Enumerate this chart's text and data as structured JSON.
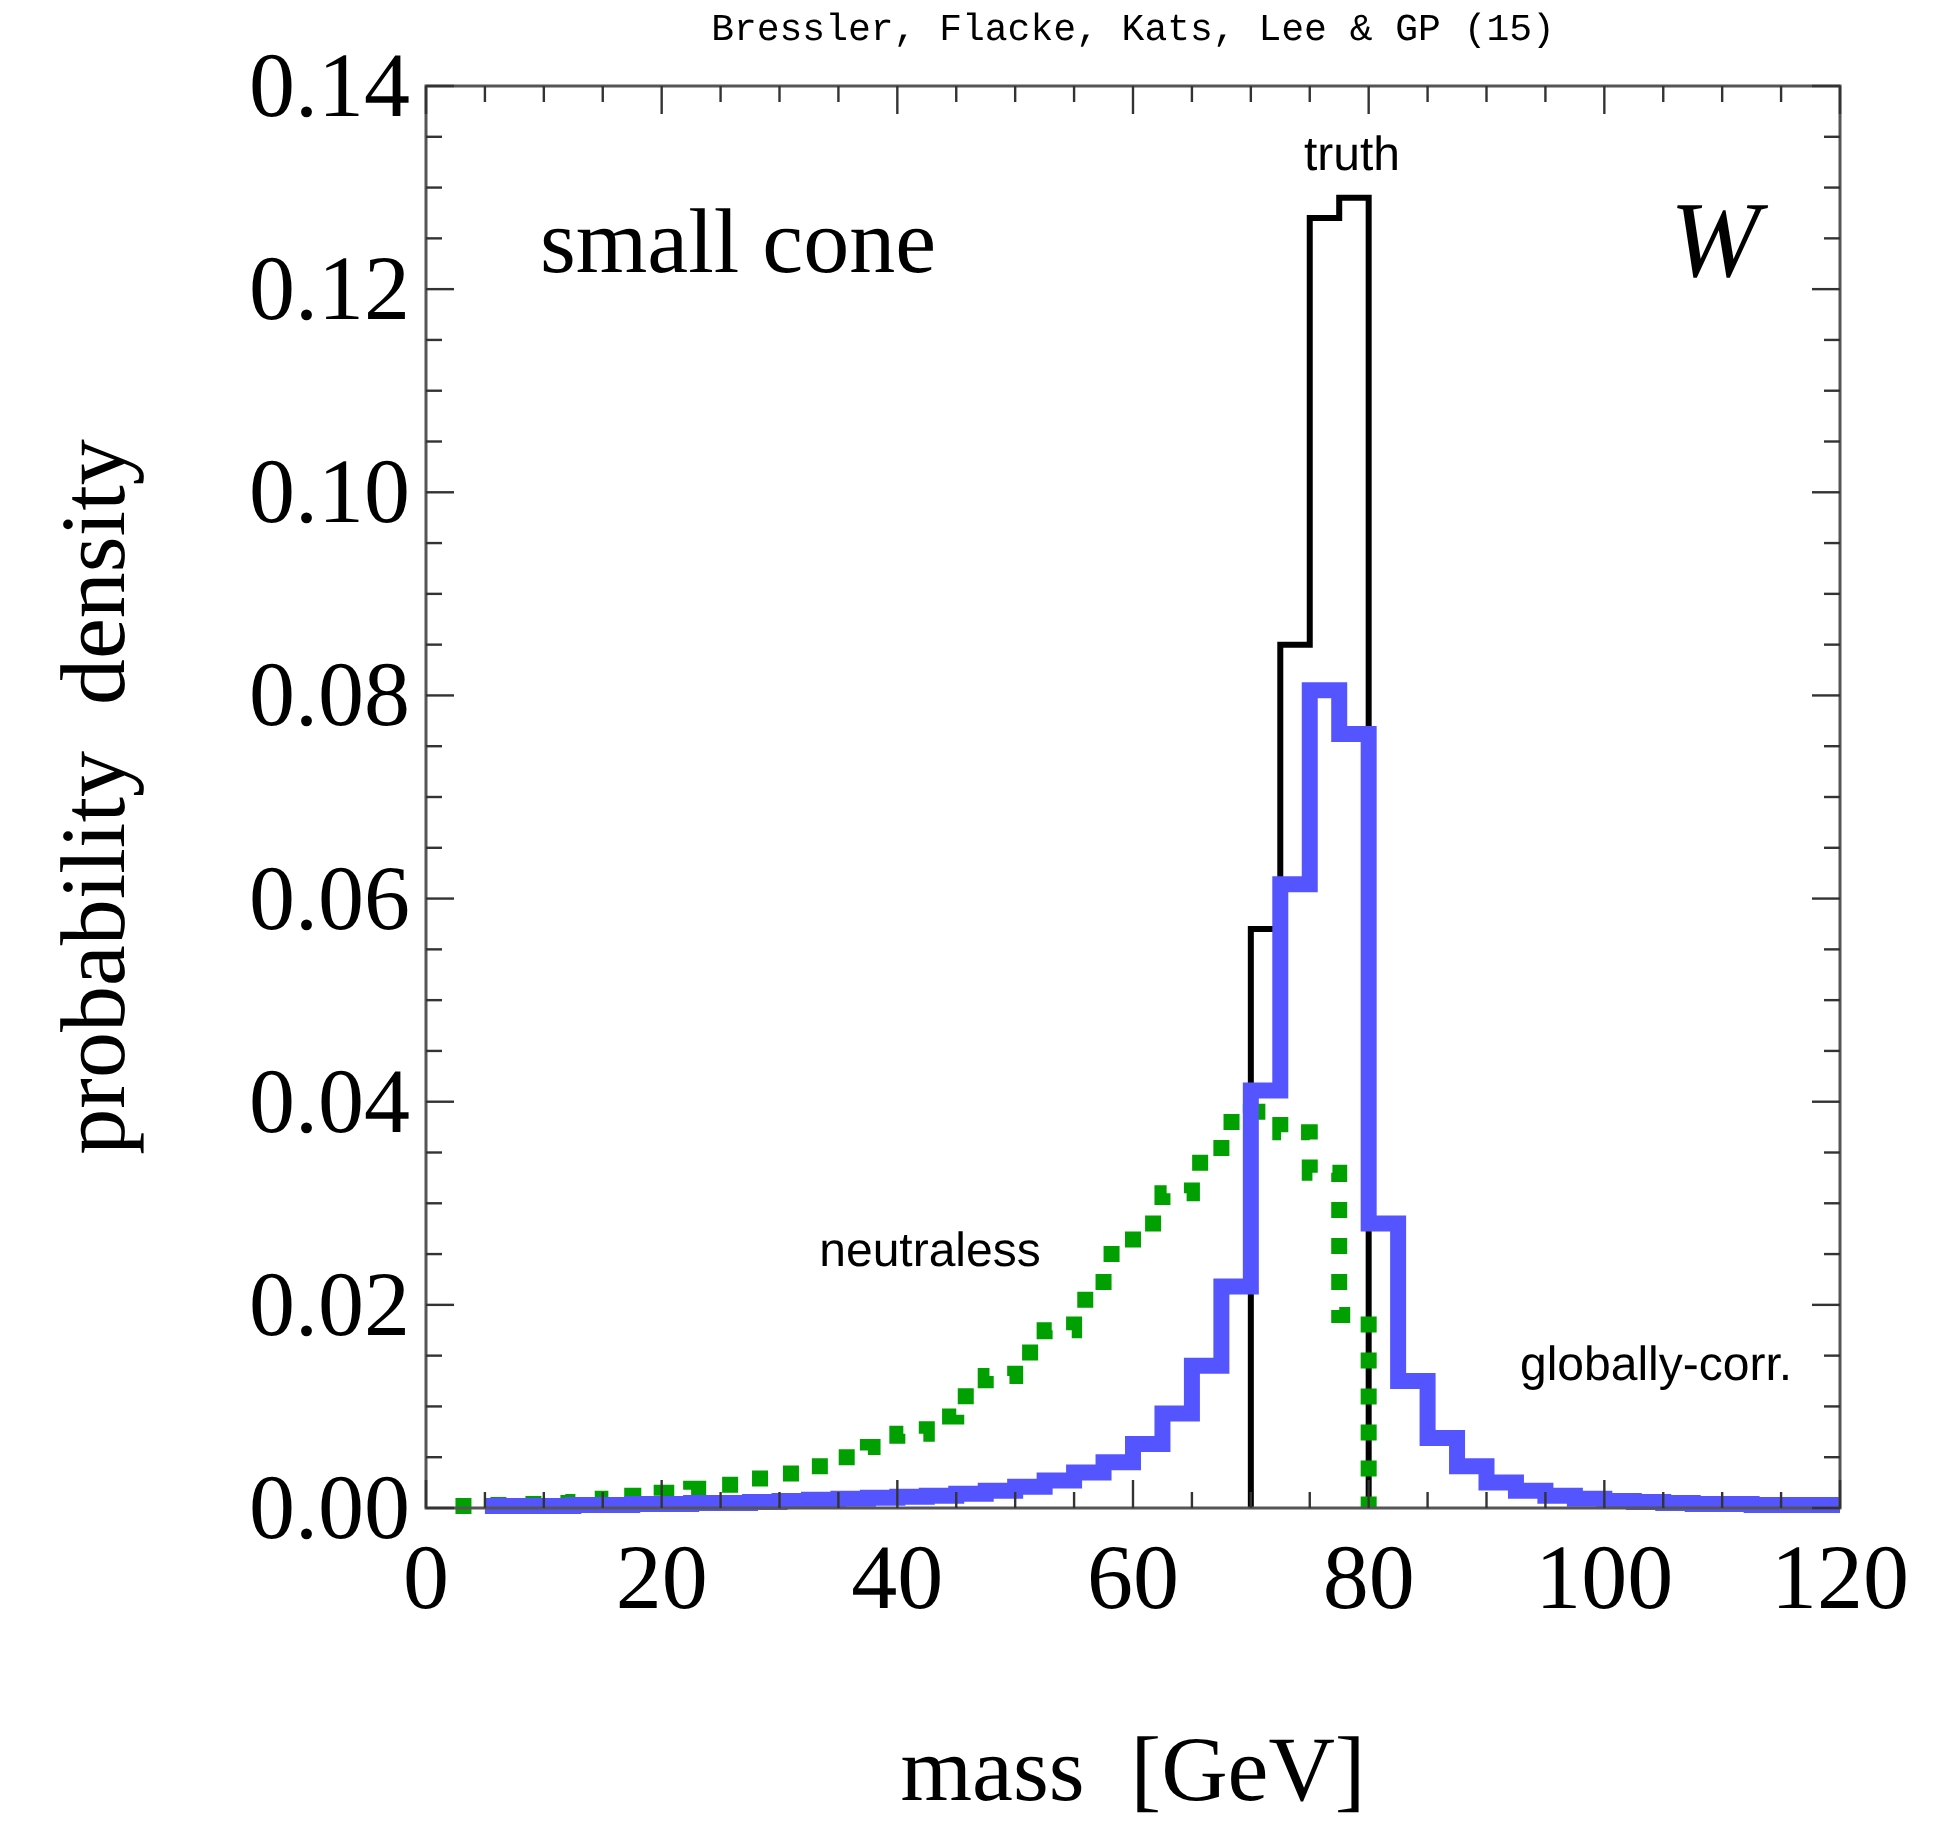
{
  "chart_data": {
    "type": "step",
    "xlabel": "mass  [GeV]",
    "ylabel": "probability  density",
    "annotations": [
      "Bressler, Flacke, Kats, Lee & GP (15)",
      "small cone",
      "W"
    ],
    "series": [
      {
        "name": "truth",
        "color": "#000000",
        "line_style": "solid",
        "x": [
          70,
          70,
          72.5,
          75,
          77.5,
          80
        ],
        "values": [
          0,
          0.057,
          0.085,
          0.127,
          0.129,
          0
        ]
      },
      {
        "name": "neutraless",
        "color": "#00a000",
        "line_style": "dotted",
        "x": [
          2.5,
          5,
          7.5,
          10,
          12.5,
          15,
          17.5,
          20,
          22.5,
          25,
          27.5,
          30,
          32.5,
          35,
          37.5,
          40,
          42.5,
          45,
          47.5,
          50,
          52.5,
          55,
          57.5,
          60,
          62.5,
          65,
          67.5,
          70,
          72.5,
          75,
          77.5,
          80
        ],
        "values": [
          0.0002,
          0.0003,
          0.0004,
          0.0005,
          0.0006,
          0.0009,
          0.0012,
          0.0015,
          0.0019,
          0.0023,
          0.0029,
          0.0034,
          0.0041,
          0.005,
          0.006,
          0.0073,
          0.009,
          0.011,
          0.013,
          0.0153,
          0.0175,
          0.0205,
          0.025,
          0.028,
          0.031,
          0.034,
          0.038,
          0.039,
          0.037,
          0.033,
          0.019,
          0
        ]
      },
      {
        "name": "globally-corr.",
        "color": "#5555ff",
        "line_style": "solid",
        "x": [
          5,
          7.5,
          10,
          12.5,
          15,
          17.5,
          20,
          22.5,
          25,
          27.5,
          30,
          32.5,
          35,
          37.5,
          40,
          42.5,
          45,
          47.5,
          50,
          52.5,
          55,
          57.5,
          60,
          62.5,
          65,
          67.5,
          70,
          72.5,
          75,
          77.5,
          80,
          82.5,
          85,
          87.5,
          90,
          92.5,
          95,
          97.5,
          100,
          102.5,
          105,
          107.5,
          110,
          112.5,
          115,
          117.5,
          120
        ],
        "values": [
          0.0002,
          0.0002,
          0.0002,
          0.0003,
          0.0003,
          0.0004,
          0.0004,
          0.0005,
          0.0005,
          0.0006,
          0.0007,
          0.0008,
          0.0009,
          0.001,
          0.0011,
          0.0012,
          0.0014,
          0.0017,
          0.0021,
          0.0027,
          0.0035,
          0.0045,
          0.0063,
          0.0093,
          0.014,
          0.0218,
          0.0411,
          0.0614,
          0.0805,
          0.0762,
          0.028,
          0.0125,
          0.0069,
          0.0041,
          0.0025,
          0.0017,
          0.0012,
          0.0009,
          0.0007,
          0.0006,
          0.0005,
          0.0004,
          0.0004,
          0.0003,
          0.0003,
          0.0003,
          0.0003
        ]
      }
    ],
    "xlim": [
      0,
      120
    ],
    "xticks": [
      0,
      {
        "value": 5,
        "label": null
      },
      {
        "value": 10,
        "label": null
      },
      {
        "value": 15,
        "label": null
      },
      20,
      {
        "value": 25,
        "label": null
      },
      {
        "value": 30,
        "label": null
      },
      {
        "value": 35,
        "label": null
      },
      40,
      {
        "value": 45,
        "label": null
      },
      {
        "value": 50,
        "label": null
      },
      {
        "value": 55,
        "label": null
      },
      60,
      {
        "value": 65,
        "label": null
      },
      {
        "value": 70,
        "label": null
      },
      {
        "value": 75,
        "label": null
      },
      80,
      {
        "value": 85,
        "label": null
      },
      {
        "value": 90,
        "label": null
      },
      {
        "value": 95,
        "label": null
      },
      100,
      {
        "value": 105,
        "label": null
      },
      {
        "value": 110,
        "label": null
      },
      {
        "value": 115,
        "label": null
      },
      120
    ],
    "ylim": [
      0,
      0.14
    ],
    "yticks": [
      {
        "value": 0,
        "label": "0.00"
      },
      {
        "value": 0.005,
        "label": null
      },
      {
        "value": 0.01,
        "label": null
      },
      {
        "value": 0.015,
        "label": null
      },
      {
        "value": 0.02,
        "label": "0.02"
      },
      {
        "value": 0.025,
        "label": null
      },
      {
        "value": 0.03,
        "label": null
      },
      {
        "value": 0.035,
        "label": null
      },
      {
        "value": 0.04,
        "label": "0.04"
      },
      {
        "value": 0.045,
        "label": null
      },
      {
        "value": 0.05,
        "label": null
      },
      {
        "value": 0.055,
        "label": null
      },
      {
        "value": 0.06,
        "label": "0.06"
      },
      {
        "value": 0.065,
        "label": null
      },
      {
        "value": 0.07,
        "label": null
      },
      {
        "value": 0.075,
        "label": null
      },
      {
        "value": 0.08,
        "label": "0.08"
      },
      {
        "value": 0.085,
        "label": null
      },
      {
        "value": 0.09,
        "label": null
      },
      {
        "value": 0.095,
        "label": null
      },
      {
        "value": 0.1,
        "label": "0.10"
      },
      {
        "value": 0.105,
        "label": null
      },
      {
        "value": 0.11,
        "label": null
      },
      {
        "value": 0.115,
        "label": null
      },
      {
        "value": 0.12,
        "label": "0.12"
      },
      {
        "value": 0.125,
        "label": null
      },
      {
        "value": 0.13,
        "label": null
      },
      {
        "value": 0.135,
        "label": null
      },
      {
        "value": 0.14,
        "label": "0.14"
      }
    ],
    "grid": false,
    "legend": false
  }
}
